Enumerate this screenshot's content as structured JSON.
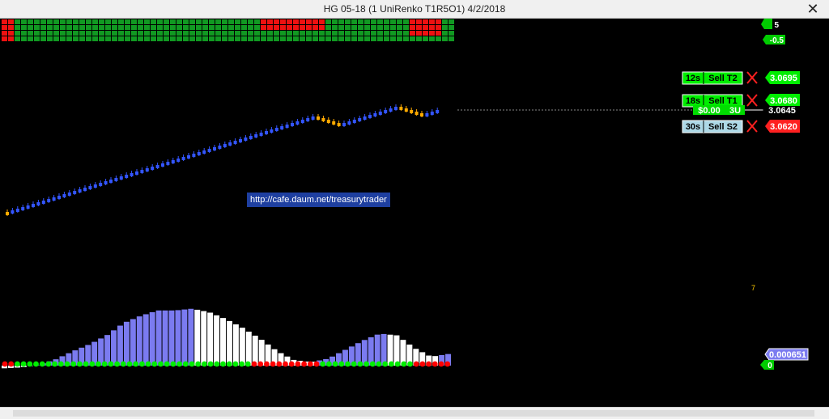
{
  "window": {
    "title": "HG 05-18 (1 UniRenko T1R5O1)  4/2/2018",
    "close_glyph": "✕"
  },
  "url_banner": "http://cafe.daum.net/treasurytrader",
  "top_tags": [
    "5",
    "-0.5"
  ],
  "order_lines": [
    {
      "timer": "12s",
      "label": "Sell T2",
      "price": "3.0695",
      "price_color": "#00ee00"
    },
    {
      "timer": "18s",
      "label": "Sell T1",
      "price": "3.0680",
      "price_color": "#00ee00"
    },
    {
      "timer": "30s",
      "label": "Sell S2",
      "price": "3.0620",
      "price_color": "#ff2020"
    }
  ],
  "position_line": {
    "pnl": "$0.00",
    "qty": "3U",
    "current_price": "3.0645"
  },
  "indicator": {
    "value": "0.000651",
    "zero_label": "0",
    "marker": "7"
  },
  "colors": {
    "up": "#3355ff",
    "down": "#ffaa00",
    "hist_pos": "#7b7bf0",
    "hist_neg": "#ffffff",
    "dot_bull": "#00ee00",
    "dot_bear": "#ff0000"
  },
  "chart_data": {
    "type": "bar",
    "price_bricks": [
      {
        "o": 3.0325,
        "c": 3.033
      },
      {
        "o": 3.033,
        "c": 3.0345
      },
      {
        "o": 3.0345,
        "c": 3.0625
      },
      {
        "o": 3.0625,
        "c": 3.06
      },
      {
        "o": 3.06,
        "c": 3.0655
      },
      {
        "o": 3.0655,
        "c": 3.063
      },
      {
        "o": 3.063,
        "c": 3.0645
      }
    ],
    "histogram": [
      -0.00015,
      -0.0001,
      5e-05,
      0.00035,
      0.0008,
      0.0012,
      0.0017,
      0.0024,
      0.0028,
      0.0031,
      0.0031,
      0.0032,
      0.003,
      0.0026,
      0.0021,
      0.0015,
      0.0008,
      0.0003,
      0.0002,
      0.0004,
      0.0009,
      0.0014,
      0.0018,
      0.0017,
      0.001,
      0.0005,
      0.000651
    ],
    "signal_dots": "rrggggggggggggggggggggggggggggggggggggggrrrrrrrrrrrgggggggggggggggrrrrrr"
  }
}
